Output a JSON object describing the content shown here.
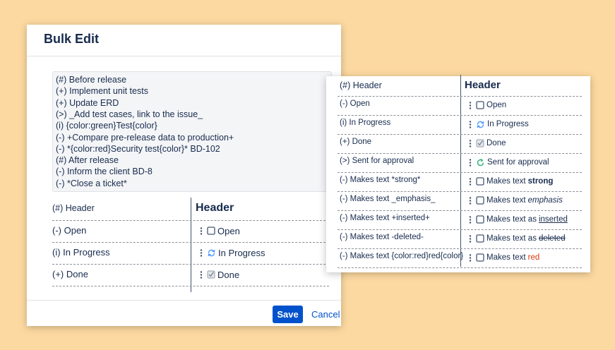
{
  "dialog": {
    "title": "Bulk Edit",
    "editor_lines": [
      "(#) Before release",
      "(+) Implement unit tests",
      "(+) Update ERD",
      "(>) _Add test cases, link to the issue_",
      "(i) {color:green}Test{color}",
      "(-) +Compare pre-release data to production+",
      "(-) *{color:red}Security test{color}* BD-102",
      "(#) After release",
      "(-) Inform the client BD-8",
      "(-) *Close a ticket*"
    ],
    "table": {
      "header": [
        "(#) Header",
        "Header"
      ],
      "rows": [
        {
          "source": "(-) Open",
          "icon": "checkbox",
          "text": "Open"
        },
        {
          "source": "(i) In Progress",
          "icon": "in-progress",
          "text": "In Progress"
        },
        {
          "source": "(+) Done",
          "icon": "checked",
          "text": "Done"
        }
      ]
    },
    "save": "Save",
    "cancel": "Cancel"
  },
  "preview": {
    "header": [
      "(#) Header",
      "Header"
    ],
    "rows": [
      {
        "source": "(-) Open",
        "icon": "checkbox",
        "text": "Open"
      },
      {
        "source": "(i) In Progress",
        "icon": "in-progress",
        "text": "In Progress"
      },
      {
        "source": "(+) Done",
        "icon": "checked",
        "text": "Done"
      },
      {
        "source": "(>) Sent for approval",
        "icon": "approval",
        "text": "Sent for approval"
      },
      {
        "source": "(-) Makes text *strong*",
        "icon": "checkbox",
        "text": "Makes text",
        "styled": "strong",
        "style": "bold"
      },
      {
        "source": "(-) Makes text _emphasis_",
        "icon": "checkbox",
        "text": "Makes text",
        "styled": "emphasis",
        "style": "italic"
      },
      {
        "source": "(-) Makes text +inserted+",
        "icon": "checkbox",
        "text": "Makes text as",
        "styled": "inserted",
        "style": "underline"
      },
      {
        "source": "(-) Makes text -deleted-",
        "icon": "checkbox",
        "text": "Makes text as",
        "styled": "deleted",
        "style": "strike"
      },
      {
        "source": "(-) Makes text {color:red}red{color}",
        "icon": "checkbox",
        "text": "Makes text",
        "styled": "red",
        "style": "red"
      }
    ]
  }
}
